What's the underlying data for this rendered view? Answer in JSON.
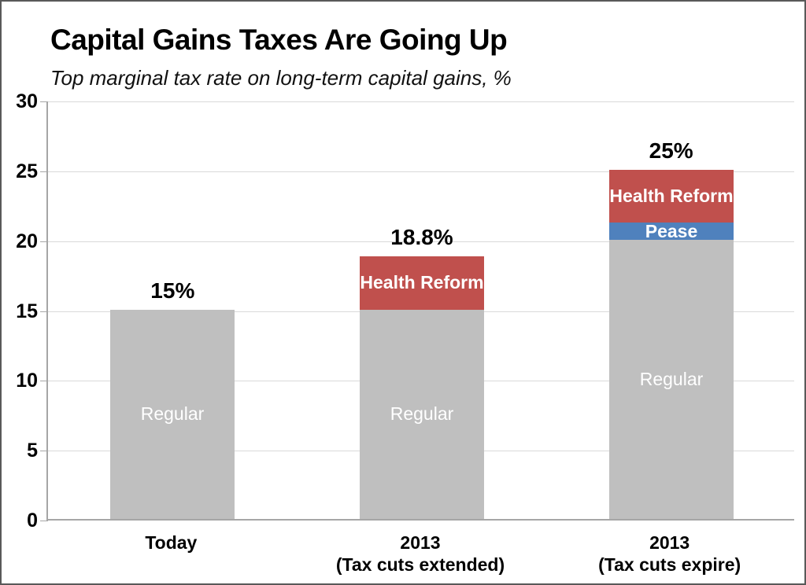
{
  "figure": {
    "title": "Capital Gains Taxes Are Going Up",
    "subtitle": "Top marginal tax rate on long-term capital gains, %"
  },
  "colors": {
    "regular_gray": "#BFBFBF",
    "health_reform_red": "#C0504D",
    "pease_blue": "#4F81BD",
    "gridline": "#D9D9D9",
    "axis_line": "#A6A6A6",
    "segment_label_text": "#FFFFFF",
    "text": "#000000"
  },
  "chart_data": {
    "type": "bar",
    "stacked": true,
    "title": "Capital Gains Taxes Are Going Up",
    "subtitle": "Top marginal tax rate on long-term capital gains, %",
    "ylim": [
      0,
      30
    ],
    "yticks": [
      0,
      5,
      10,
      15,
      20,
      25,
      30
    ],
    "grid": true,
    "legend_position": "none",
    "categories": [
      [
        "Today"
      ],
      [
        "2013",
        "(Tax cuts extended)"
      ],
      [
        "2013",
        "(Tax cuts expire)"
      ]
    ],
    "series": [
      {
        "name": "Regular",
        "color": "#BFBFBF",
        "values": [
          15,
          15,
          20
        ],
        "label_weight": "normal"
      },
      {
        "name": "Pease",
        "color": "#4F81BD",
        "values": [
          0,
          0,
          1.2
        ],
        "label_weight": "bold"
      },
      {
        "name": "Health Reform",
        "color": "#C0504D",
        "values": [
          0,
          3.8,
          3.8
        ],
        "label_weight": "bold"
      }
    ],
    "totals": [
      "15%",
      "18.8%",
      "25%"
    ]
  }
}
